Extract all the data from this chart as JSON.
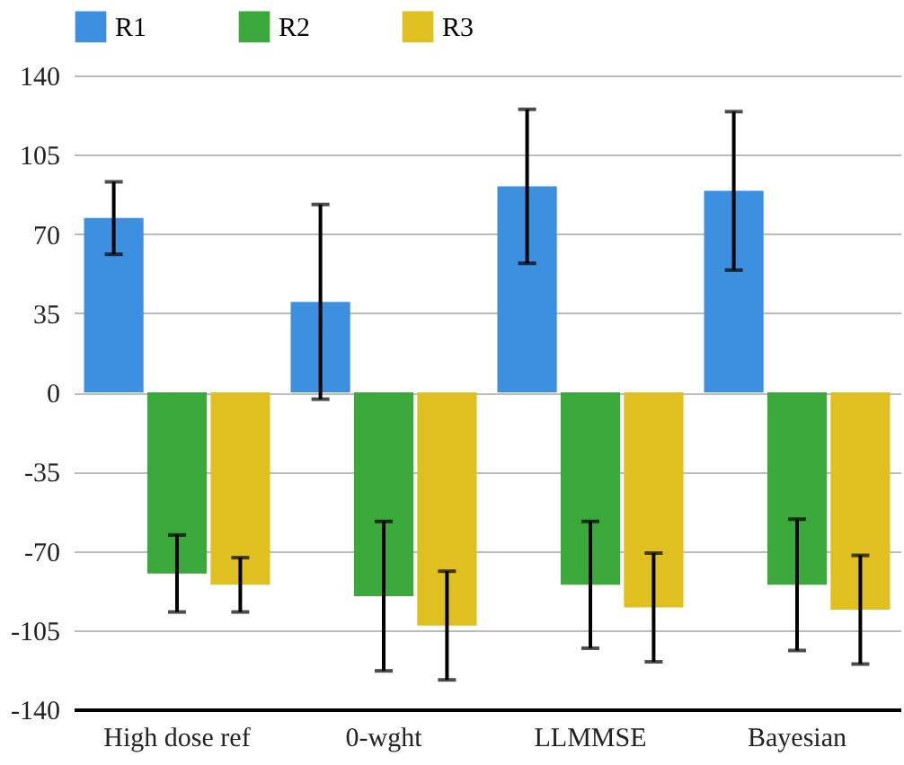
{
  "chart_data": {
    "type": "bar",
    "categories": [
      "High dose ref",
      "0-wght",
      "LLMMSE",
      "Bayesian"
    ],
    "series": [
      {
        "name": "R1",
        "color": "#3d8fe0",
        "values": [
          77,
          40,
          91,
          89
        ],
        "errors": [
          16,
          43,
          34,
          35
        ]
      },
      {
        "name": "R2",
        "color": "#3aa83a",
        "values": [
          -80,
          -90,
          -85,
          -85
        ],
        "errors": [
          17,
          33,
          28,
          29
        ]
      },
      {
        "name": "R3",
        "color": "#e0c020",
        "values": [
          -85,
          -103,
          -95,
          -96
        ],
        "errors": [
          12,
          24,
          24,
          24
        ]
      }
    ],
    "ylim": [
      -140,
      140
    ],
    "yticks": [
      -140,
      -105,
      -70,
      -35,
      0,
      35,
      70,
      105,
      140
    ],
    "grid": "y",
    "legend": "top"
  }
}
